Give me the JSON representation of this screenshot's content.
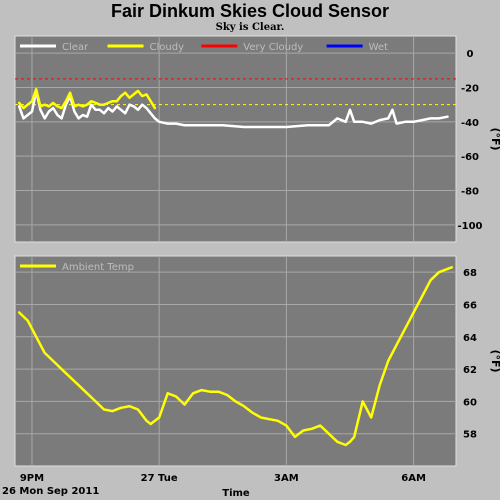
{
  "page": {
    "title": "Fair Dinkum Skies Cloud Sensor",
    "subtitle": "Sky is Clear.",
    "date_label": "26 Mon Sep 2011",
    "time_label": "Time"
  },
  "colors": {
    "background": "#c0c0c0",
    "plot_bg": "#7b7b7b",
    "grid": "#a8a8a8",
    "clear": "#ffffff",
    "cloudy": "#ffff00",
    "very_cloudy": "#ff0000",
    "wet": "#0000ff",
    "ambient": "#ffff00",
    "legend_text": "#bdbdbd"
  },
  "chart_data": [
    {
      "type": "line",
      "title": "",
      "ylabel": "(°F)",
      "xlabel": "Time",
      "ylim": [
        -110,
        10
      ],
      "xlim": [
        20.6,
        31.0
      ],
      "yticks": [
        0,
        -20,
        -40,
        -60,
        -80,
        -100
      ],
      "ytick_labels": [
        "0",
        "-20",
        "-40",
        "-60",
        "-80",
        "-100"
      ],
      "grid": true,
      "legend": {
        "placement": "top-left",
        "entries": [
          {
            "label": "Clear",
            "color": "#ffffff"
          },
          {
            "label": "Cloudy",
            "color": "#ffff00"
          },
          {
            "label": "Very Cloudy",
            "color": "#ff0000"
          },
          {
            "label": "Wet",
            "color": "#0000ff"
          }
        ]
      },
      "thresholds": [
        {
          "name": "Very Cloudy",
          "value": -15,
          "color": "#ff0000"
        },
        {
          "name": "Cloudy",
          "value": -30,
          "color": "#ffff00"
        }
      ],
      "series": [
        {
          "name": "Clear",
          "color": "#ffffff",
          "x": [
            20.7,
            20.8,
            20.9,
            21.0,
            21.1,
            21.2,
            21.3,
            21.4,
            21.5,
            21.6,
            21.7,
            21.8,
            21.9,
            22.0,
            22.1,
            22.2,
            22.3,
            22.4,
            22.5,
            22.6,
            22.7,
            22.8,
            22.9,
            23.0,
            23.1,
            23.2,
            23.3,
            23.4,
            23.5,
            23.6,
            23.7,
            23.8,
            23.9,
            24.0,
            24.2,
            24.4,
            24.6,
            24.8,
            25.0,
            25.5,
            26.0,
            26.5,
            27.0,
            27.5,
            28.0,
            28.2,
            28.4,
            28.5,
            28.6,
            28.8,
            29.0,
            29.2,
            29.4,
            29.5,
            29.6,
            29.8,
            30.0,
            30.2,
            30.4,
            30.6,
            30.8
          ],
          "y": [
            -31,
            -38,
            -36,
            -34,
            -22,
            -33,
            -38,
            -34,
            -32,
            -36,
            -38,
            -30,
            -25,
            -34,
            -38,
            -36,
            -37,
            -30,
            -33,
            -33,
            -35,
            -32,
            -34,
            -31,
            -33,
            -35,
            -30,
            -31,
            -33,
            -30,
            -32,
            -35,
            -38,
            -40,
            -41,
            -41,
            -42,
            -42,
            -42,
            -42,
            -43,
            -43,
            -43,
            -42,
            -42,
            -38,
            -40,
            -33,
            -40,
            -40,
            -41,
            -39,
            -38,
            -33,
            -41,
            -40,
            -40,
            -39,
            -38,
            -38,
            -37
          ]
        },
        {
          "name": "Cloudy",
          "color": "#ffff00",
          "x": [
            20.7,
            20.8,
            20.9,
            21.0,
            21.1,
            21.2,
            21.3,
            21.4,
            21.5,
            21.6,
            21.7,
            21.8,
            21.9,
            22.0,
            22.1,
            22.2,
            22.3,
            22.4,
            22.5,
            22.6,
            22.7,
            22.8,
            22.9,
            23.0,
            23.1,
            23.2,
            23.3,
            23.4,
            23.5,
            23.6,
            23.7,
            23.8,
            23.9
          ],
          "y": [
            -29,
            -32,
            -30,
            -28,
            -21,
            -31,
            -30,
            -31,
            -29,
            -31,
            -32,
            -28,
            -23,
            -31,
            -30,
            -31,
            -30,
            -28,
            -29,
            -30,
            -30,
            -29,
            -28,
            -28,
            -25,
            -23,
            -26,
            -24,
            -22,
            -25,
            -24,
            -28,
            -32
          ]
        }
      ]
    },
    {
      "type": "line",
      "title": "",
      "ylabel": "(°F)",
      "xlabel": "Time",
      "ylim": [
        56,
        69
      ],
      "xlim": [
        20.6,
        31.0
      ],
      "yticks": [
        58,
        60,
        62,
        64,
        66,
        68
      ],
      "ytick_labels": [
        "58",
        "60",
        "62",
        "64",
        "66",
        "68"
      ],
      "xticks": [
        21,
        24,
        27,
        30
      ],
      "xtick_labels": [
        "9PM",
        "27 Tue",
        "3AM",
        "6AM"
      ],
      "grid": true,
      "legend": {
        "placement": "top-left",
        "entries": [
          {
            "label": "Ambient Temp",
            "color": "#ffff00"
          }
        ]
      },
      "series": [
        {
          "name": "Ambient Temp",
          "color": "#ffff00",
          "x": [
            20.7,
            20.9,
            21.1,
            21.3,
            21.5,
            21.7,
            21.9,
            22.1,
            22.3,
            22.5,
            22.7,
            22.9,
            23.1,
            23.3,
            23.5,
            23.7,
            23.8,
            24.0,
            24.2,
            24.4,
            24.6,
            24.8,
            25.0,
            25.2,
            25.4,
            25.6,
            25.8,
            26.0,
            26.2,
            26.4,
            26.6,
            26.8,
            27.0,
            27.2,
            27.4,
            27.6,
            27.8,
            28.0,
            28.2,
            28.4,
            28.5,
            28.6,
            28.8,
            29.0,
            29.2,
            29.4,
            29.6,
            29.8,
            29.9,
            30.0,
            30.1,
            30.2,
            30.4,
            30.6,
            30.8,
            30.9
          ],
          "y": [
            65.5,
            65.0,
            64.0,
            63.0,
            62.5,
            62.0,
            61.5,
            61.0,
            60.5,
            60.0,
            59.5,
            59.4,
            59.6,
            59.7,
            59.5,
            58.8,
            58.6,
            59.0,
            60.5,
            60.3,
            59.8,
            60.5,
            60.7,
            60.6,
            60.6,
            60.4,
            60.0,
            59.7,
            59.3,
            59.0,
            58.9,
            58.8,
            58.5,
            57.8,
            58.2,
            58.3,
            58.5,
            58.0,
            57.5,
            57.3,
            57.5,
            57.8,
            60.0,
            59.0,
            61.0,
            62.5,
            63.5,
            64.5,
            65.0,
            65.5,
            66.0,
            66.5,
            67.5,
            68.0,
            68.2,
            68.3
          ]
        }
      ]
    }
  ]
}
